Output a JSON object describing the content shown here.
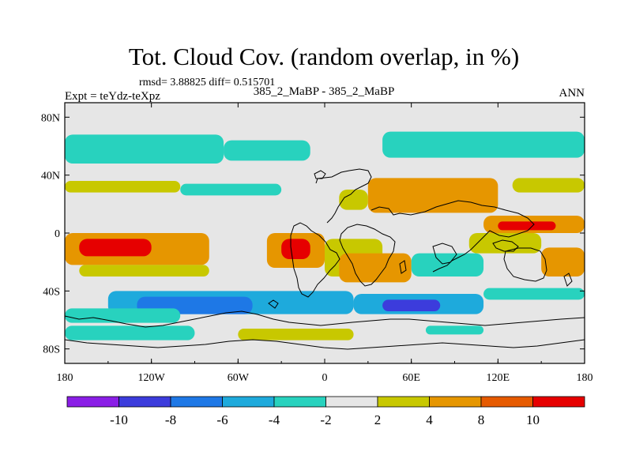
{
  "chart_data": {
    "type": "heatmap",
    "title": "Tot. Cloud Cov. (random overlap, in %)",
    "stats_line": "rmsd= 3.88825 diff= 0.515701",
    "left_label": "Expt = teYdz-teXpz",
    "center_label": "385_2_MaBP - 385_2_MaBP",
    "right_label": "ANN",
    "x_ticks": [
      "180",
      "120W",
      "60W",
      "0",
      "60E",
      "120E",
      "180"
    ],
    "y_ticks": [
      "80N",
      "40N",
      "0",
      "40S",
      "80S"
    ],
    "xlim": [
      -180,
      180
    ],
    "ylim": [
      -90,
      90
    ],
    "colorbar": {
      "levels": [
        -10,
        -8,
        -6,
        -4,
        -2,
        2,
        4,
        8,
        10
      ],
      "labels": [
        "-10",
        "-8",
        "-6",
        "-4",
        "-2",
        "2",
        "4",
        "8",
        "10"
      ],
      "colors": [
        "#8a1ee6",
        "#3c3cdc",
        "#1e78e6",
        "#1eaadc",
        "#28d2be",
        "#e6e6e6",
        "#c8c800",
        "#e69600",
        "#e65a00",
        "#e60000"
      ]
    },
    "field": [
      {
        "lon0": -180,
        "lon1": 180,
        "lat0": 78,
        "lat1": 90,
        "value": 0
      },
      {
        "lon0": -180,
        "lon1": -70,
        "lat0": 48,
        "lat1": 68,
        "value": -3
      },
      {
        "lon0": -70,
        "lon1": -10,
        "lat0": 50,
        "lat1": 64,
        "value": -3
      },
      {
        "lon0": 40,
        "lon1": 180,
        "lat0": 52,
        "lat1": 70,
        "value": -3
      },
      {
        "lon0": -180,
        "lon1": -100,
        "lat0": 28,
        "lat1": 36,
        "value": 3
      },
      {
        "lon0": -100,
        "lon1": -30,
        "lat0": 26,
        "lat1": 34,
        "value": -3
      },
      {
        "lon0": 30,
        "lon1": 120,
        "lat0": 14,
        "lat1": 38,
        "value": 5
      },
      {
        "lon0": 10,
        "lon1": 30,
        "lat0": 16,
        "lat1": 30,
        "value": 3
      },
      {
        "lon0": 130,
        "lon1": 180,
        "lat0": 28,
        "lat1": 38,
        "value": 3
      },
      {
        "lon0": 110,
        "lon1": 180,
        "lat0": 0,
        "lat1": 12,
        "value": 5
      },
      {
        "lon0": 120,
        "lon1": 160,
        "lat0": 2,
        "lat1": 8,
        "value": 10
      },
      {
        "lon0": -180,
        "lon1": -80,
        "lat0": -22,
        "lat1": 0,
        "value": 5
      },
      {
        "lon0": -170,
        "lon1": -120,
        "lat0": -16,
        "lat1": -4,
        "value": 10
      },
      {
        "lon0": -40,
        "lon1": 0,
        "lat0": -24,
        "lat1": 0,
        "value": 5
      },
      {
        "lon0": -30,
        "lon1": -10,
        "lat0": -18,
        "lat1": -4,
        "value": 10
      },
      {
        "lon0": 0,
        "lon1": 40,
        "lat0": -30,
        "lat1": -4,
        "value": 3
      },
      {
        "lon0": 10,
        "lon1": 60,
        "lat0": -34,
        "lat1": -14,
        "value": 5
      },
      {
        "lon0": -170,
        "lon1": -80,
        "lat0": -30,
        "lat1": -22,
        "value": 3
      },
      {
        "lon0": 60,
        "lon1": 110,
        "lat0": -30,
        "lat1": -14,
        "value": -3
      },
      {
        "lon0": 100,
        "lon1": 150,
        "lat0": -14,
        "lat1": 0,
        "value": 3
      },
      {
        "lon0": 150,
        "lon1": 180,
        "lat0": -30,
        "lat1": -10,
        "value": 5
      },
      {
        "lon0": -150,
        "lon1": 20,
        "lat0": -56,
        "lat1": -40,
        "value": -5
      },
      {
        "lon0": -130,
        "lon1": -50,
        "lat0": -56,
        "lat1": -44,
        "value": -7
      },
      {
        "lon0": -180,
        "lon1": -100,
        "lat0": -62,
        "lat1": -52,
        "value": -3
      },
      {
        "lon0": 20,
        "lon1": 110,
        "lat0": -56,
        "lat1": -42,
        "value": -5
      },
      {
        "lon0": 40,
        "lon1": 80,
        "lat0": -54,
        "lat1": -46,
        "value": -9
      },
      {
        "lon0": 110,
        "lon1": 180,
        "lat0": -46,
        "lat1": -38,
        "value": -3
      },
      {
        "lon0": -180,
        "lon1": -90,
        "lat0": -74,
        "lat1": -64,
        "value": -3
      },
      {
        "lon0": -60,
        "lon1": 20,
        "lat0": -74,
        "lat1": -66,
        "value": 3
      },
      {
        "lon0": 70,
        "lon1": 110,
        "lat0": -70,
        "lat1": -64,
        "value": -3
      }
    ]
  }
}
